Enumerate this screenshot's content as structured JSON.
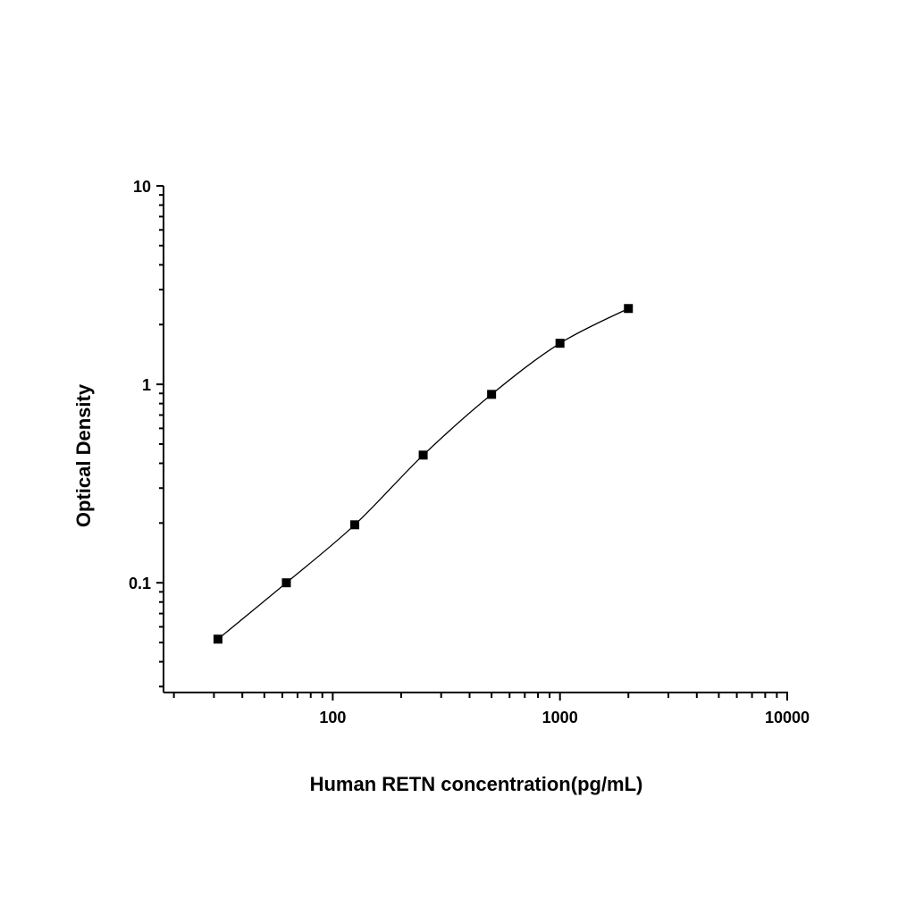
{
  "chart_data": {
    "type": "scatter",
    "title": "",
    "xlabel": "Human RETN concentration(pg/mL)",
    "ylabel": "Optical Density",
    "xscale": "log",
    "yscale": "log",
    "xlim": [
      18,
      10000
    ],
    "ylim": [
      0.028,
      10
    ],
    "xticks": [
      {
        "value": 100,
        "label": "100"
      },
      {
        "value": 1000,
        "label": "1000"
      },
      {
        "value": 10000,
        "label": "10000"
      }
    ],
    "yticks": [
      {
        "value": 0.1,
        "label": "0.1"
      },
      {
        "value": 1,
        "label": "1"
      },
      {
        "value": 10,
        "label": "10"
      }
    ],
    "grid": false,
    "legend": "none",
    "marker": "square",
    "color": "#000000",
    "fit_curve": true,
    "points": [
      {
        "x": 31.25,
        "y": 0.052
      },
      {
        "x": 62.5,
        "y": 0.1
      },
      {
        "x": 125,
        "y": 0.196
      },
      {
        "x": 250,
        "y": 0.44
      },
      {
        "x": 500,
        "y": 0.89
      },
      {
        "x": 1000,
        "y": 1.61
      },
      {
        "x": 2000,
        "y": 2.41
      }
    ]
  }
}
